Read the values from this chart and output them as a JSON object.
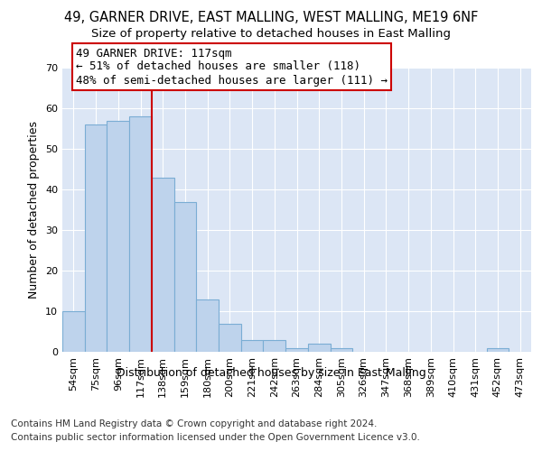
{
  "title_line1": "49, GARNER DRIVE, EAST MALLING, WEST MALLING, ME19 6NF",
  "title_line2": "Size of property relative to detached houses in East Malling",
  "xlabel": "Distribution of detached houses by size in East Malling",
  "ylabel": "Number of detached properties",
  "categories": [
    "54sqm",
    "75sqm",
    "96sqm",
    "117sqm",
    "138sqm",
    "159sqm",
    "180sqm",
    "200sqm",
    "221sqm",
    "242sqm",
    "263sqm",
    "284sqm",
    "305sqm",
    "326sqm",
    "347sqm",
    "368sqm",
    "389sqm",
    "410sqm",
    "431sqm",
    "452sqm",
    "473sqm"
  ],
  "values": [
    10,
    56,
    57,
    58,
    43,
    37,
    13,
    7,
    3,
    3,
    1,
    2,
    1,
    0,
    0,
    0,
    0,
    0,
    0,
    1,
    0
  ],
  "bar_color": "#bed3ec",
  "bar_edge_color": "#7aadd4",
  "highlight_index": 3,
  "highlight_line_color": "#cc0000",
  "annotation_line1": "49 GARNER DRIVE: 117sqm",
  "annotation_line2": "← 51% of detached houses are smaller (118)",
  "annotation_line3": "48% of semi-detached houses are larger (111) →",
  "annotation_box_color": "#ffffff",
  "annotation_edge_color": "#cc0000",
  "ylim": [
    0,
    70
  ],
  "yticks": [
    0,
    10,
    20,
    30,
    40,
    50,
    60,
    70
  ],
  "plot_background_color": "#dce6f5",
  "grid_color": "#ffffff",
  "title_fontsize": 10.5,
  "subtitle_fontsize": 9.5,
  "tick_fontsize": 8,
  "ylabel_fontsize": 9,
  "xlabel_fontsize": 9,
  "annotation_fontsize": 9,
  "footer_fontsize": 7.5
}
